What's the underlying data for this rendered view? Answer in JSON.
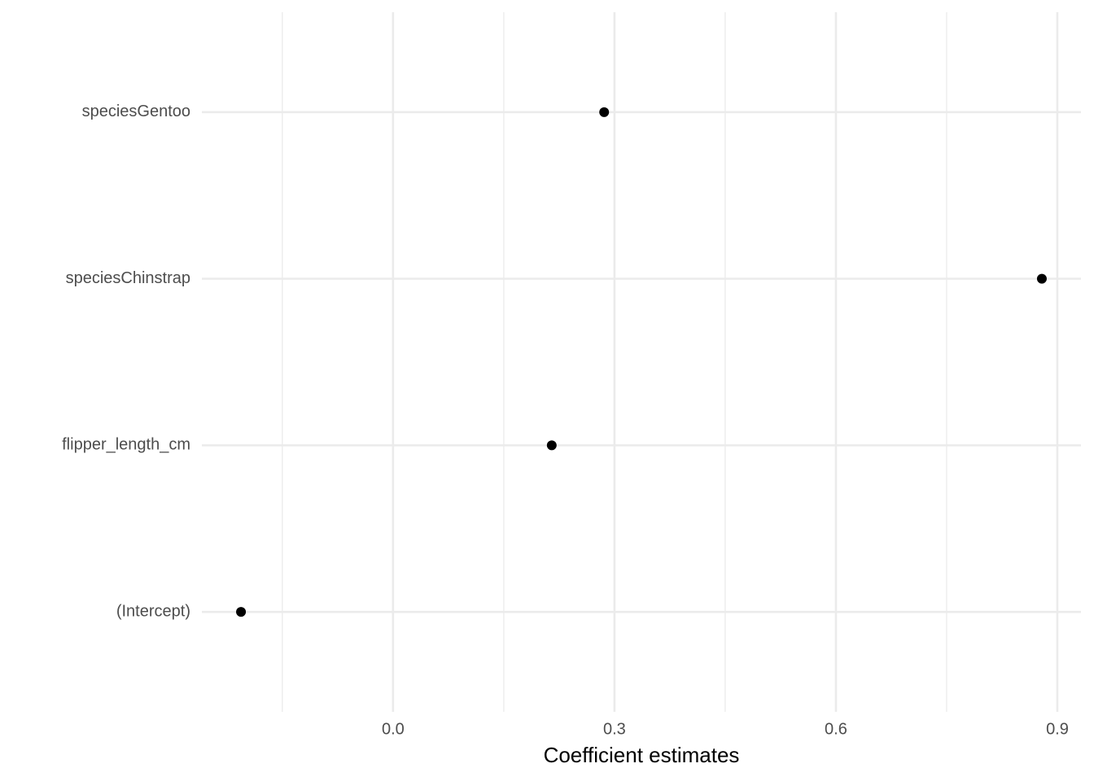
{
  "chart_data": {
    "type": "dot",
    "x_label": "Coefficient estimates",
    "categories": [
      "(Intercept)",
      "flipper_length_cm",
      "speciesChinstrap",
      "speciesGentoo"
    ],
    "values": [
      -0.206,
      0.215,
      0.879,
      0.286
    ],
    "color": "#000000",
    "xlim": [
      -0.259,
      0.932
    ],
    "xticks": [
      {
        "value": 0,
        "label": "0.0"
      },
      0.3,
      0.6,
      0.9
    ],
    "grid": true
  }
}
